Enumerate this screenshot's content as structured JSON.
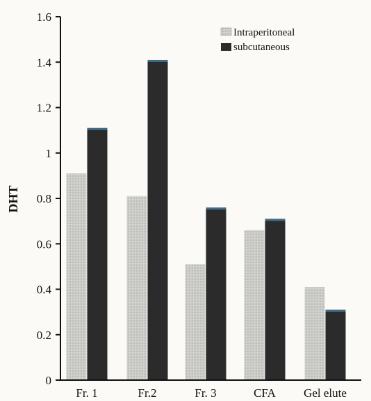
{
  "chart_data": {
    "type": "bar",
    "title": "",
    "xlabel": "",
    "ylabel": "DHT",
    "categories": [
      "Fr. 1",
      "Fr.2",
      "Fr. 3",
      "CFA",
      "Gel elute"
    ],
    "series": [
      {
        "name": "Intraperitoneal",
        "values": [
          0.91,
          0.81,
          0.51,
          0.66,
          0.41
        ],
        "color": "#c9c9c5"
      },
      {
        "name": "subcutaneous",
        "values": [
          1.11,
          1.41,
          0.76,
          0.71,
          0.31
        ],
        "color": "#2b2b2b"
      }
    ],
    "ylim": [
      0,
      1.6
    ],
    "yticks": [
      "0",
      "0.2",
      "0.4",
      "0.6",
      "0.8",
      "1",
      "1.2",
      "1.4",
      "1.6"
    ],
    "legend_position": "top-right",
    "grid": false
  }
}
